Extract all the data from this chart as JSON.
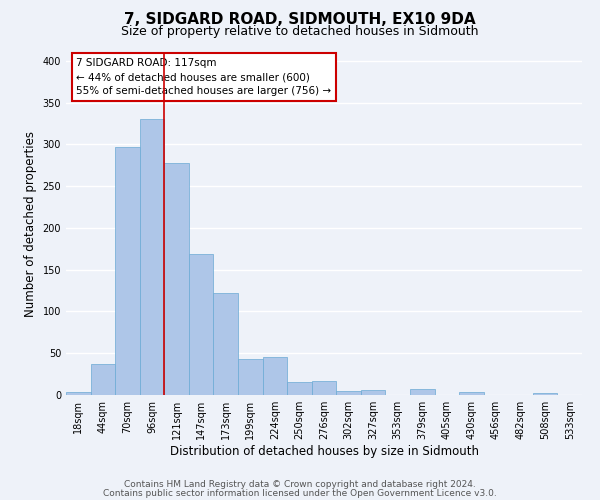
{
  "title": "7, SIDGARD ROAD, SIDMOUTH, EX10 9DA",
  "subtitle": "Size of property relative to detached houses in Sidmouth",
  "xlabel": "Distribution of detached houses by size in Sidmouth",
  "ylabel": "Number of detached properties",
  "bin_labels": [
    "18sqm",
    "44sqm",
    "70sqm",
    "96sqm",
    "121sqm",
    "147sqm",
    "173sqm",
    "199sqm",
    "224sqm",
    "250sqm",
    "276sqm",
    "302sqm",
    "327sqm",
    "353sqm",
    "379sqm",
    "405sqm",
    "430sqm",
    "456sqm",
    "482sqm",
    "508sqm",
    "533sqm"
  ],
  "bar_heights": [
    4,
    37,
    297,
    330,
    278,
    169,
    122,
    43,
    46,
    15,
    17,
    5,
    6,
    0,
    7,
    0,
    4,
    0,
    0,
    2,
    0
  ],
  "bar_color": "#aec6e8",
  "bar_edge_color": "#6aaad4",
  "bar_width": 1.0,
  "vline_x": 4,
  "vline_color": "#cc0000",
  "annotation_line1": "7 SIDGARD ROAD: 117sqm",
  "annotation_line2": "← 44% of detached houses are smaller (600)",
  "annotation_line3": "55% of semi-detached houses are larger (756) →",
  "ylim": [
    0,
    410
  ],
  "yticks": [
    0,
    50,
    100,
    150,
    200,
    250,
    300,
    350,
    400
  ],
  "footer_line1": "Contains HM Land Registry data © Crown copyright and database right 2024.",
  "footer_line2": "Contains public sector information licensed under the Open Government Licence v3.0.",
  "background_color": "#eef2f9",
  "grid_color": "#ffffff",
  "title_fontsize": 11,
  "subtitle_fontsize": 9,
  "axis_label_fontsize": 8.5,
  "tick_fontsize": 7,
  "annotation_fontsize": 7.5,
  "footer_fontsize": 6.5
}
